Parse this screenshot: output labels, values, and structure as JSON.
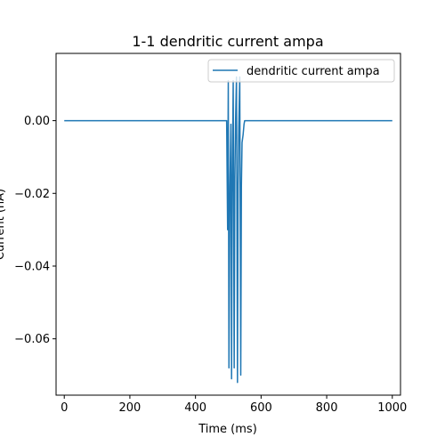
{
  "chart_data": {
    "type": "line",
    "title": "1-1 dendritic current ampa",
    "xlabel": "Time (ms)",
    "ylabel": "Current (nA)",
    "xlim": [
      -25,
      1025
    ],
    "ylim": [
      -0.0755,
      0.0185
    ],
    "xticks": [
      0,
      200,
      400,
      600,
      800,
      1000
    ],
    "xtick_labels": [
      "0",
      "200",
      "400",
      "600",
      "800",
      "1000"
    ],
    "yticks": [
      0.0,
      -0.02,
      -0.04,
      -0.06
    ],
    "ytick_labels": [
      "0.00",
      "−0.02",
      "−0.04",
      "−0.06"
    ],
    "grid": false,
    "legend_position": "upper right",
    "series": [
      {
        "name": "dendritic current ampa",
        "color": "#1f77b4",
        "x": [
          0,
          495,
          498,
          500,
          502,
          505,
          508,
          510,
          512,
          515,
          518,
          520,
          522,
          525,
          528,
          530,
          532,
          535,
          538,
          540,
          542,
          545,
          548,
          550,
          555,
          1000
        ],
        "y": [
          0.0,
          0.0,
          -0.03,
          0.011,
          -0.068,
          -0.018,
          -0.001,
          -0.071,
          -0.02,
          0.011,
          -0.068,
          -0.016,
          -0.001,
          0.012,
          -0.072,
          -0.018,
          -0.002,
          0.012,
          -0.07,
          -0.018,
          -0.006,
          -0.004,
          -0.001,
          0.0,
          0.0,
          0.0
        ]
      }
    ]
  }
}
